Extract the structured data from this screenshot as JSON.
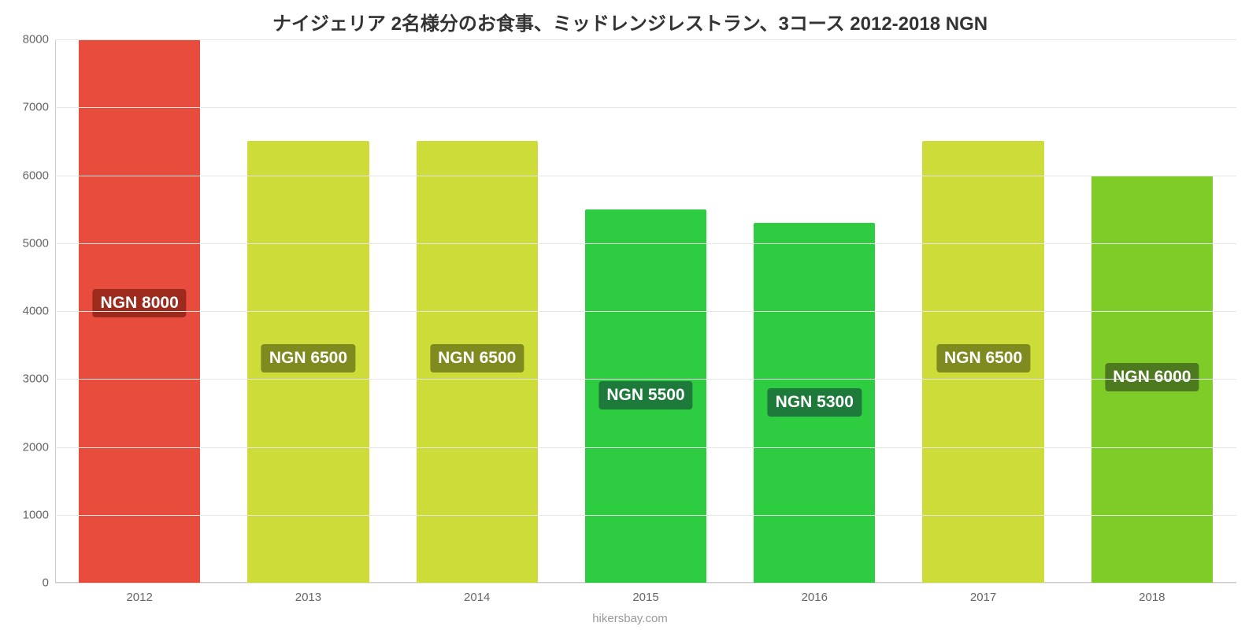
{
  "chart": {
    "type": "bar",
    "title": "ナイジェリア 2名様分のお食事、ミッドレンジレストラン、3コース 2012-2018 NGN",
    "title_fontsize": 24,
    "title_color": "#333333",
    "credit": "hikersbay.com",
    "credit_fontsize": 15,
    "credit_color": "#999999",
    "background_color": "#ffffff",
    "grid_color": "#e6e6e6",
    "axis_color": "#cccccc",
    "y": {
      "min": 0,
      "max": 8000,
      "tick_step": 1000,
      "ticks": [
        0,
        1000,
        2000,
        3000,
        4000,
        5000,
        6000,
        7000,
        8000
      ],
      "label_fontsize": 15,
      "label_color": "#666666"
    },
    "x": {
      "categories": [
        "2012",
        "2013",
        "2014",
        "2015",
        "2016",
        "2017",
        "2018"
      ],
      "label_fontsize": 15,
      "label_color": "#666666"
    },
    "bars": {
      "width_fraction": 0.72,
      "values": [
        8000,
        6500,
        6500,
        5500,
        5300,
        6500,
        6000
      ],
      "colors": [
        "#e74c3c",
        "#cddc39",
        "#cddc39",
        "#2ecc40",
        "#2ecc40",
        "#cddc39",
        "#7fcc28"
      ],
      "value_labels": [
        "NGN 8000",
        "NGN 6500",
        "NGN 6500",
        "NGN 5500",
        "NGN 5300",
        "NGN 6500",
        "NGN 6000"
      ],
      "value_label_bg": [
        "#9c2b1e",
        "#7f8a1f",
        "#7f8a1f",
        "#1e7a3a",
        "#1e7a3a",
        "#7f8a1f",
        "#4d7a1f"
      ],
      "value_label_fontsize": 21,
      "value_label_color": "#ffffff",
      "value_label_y_fraction": 0.54
    }
  }
}
